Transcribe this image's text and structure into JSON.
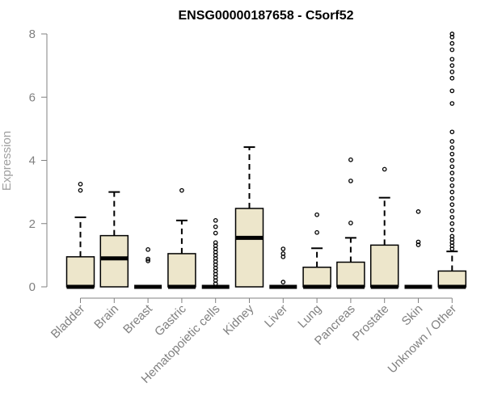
{
  "chart_data": {
    "type": "box",
    "title": "ENSG00000187658 - C5orf52",
    "xlabel": "",
    "ylabel": "Expression",
    "ylim": [
      0,
      8
    ],
    "yticks": [
      0,
      2,
      4,
      6,
      8
    ],
    "grid": false,
    "colors": {
      "box_fill": "#ede6cb",
      "stroke": "#000000",
      "axis": "#808080"
    },
    "categories": [
      "Bladder",
      "Brain",
      "Breast",
      "Gastric",
      "Hematopoietic cells",
      "Kidney",
      "Liver",
      "Lung",
      "Pancreas",
      "Prostate",
      "Skin",
      "Unknown / Other"
    ],
    "boxes": [
      {
        "category": "Bladder",
        "min": 0,
        "q1": 0,
        "median": 0,
        "q3": 0.95,
        "max": 2.2,
        "outliers": [
          3.05,
          3.25
        ]
      },
      {
        "category": "Brain",
        "min": 0,
        "q1": 0,
        "median": 0.9,
        "q3": 1.62,
        "max": 3.0,
        "outliers": []
      },
      {
        "category": "Breast",
        "min": 0,
        "q1": 0,
        "median": 0,
        "q3": 0,
        "max": 0,
        "outliers": [
          0.82,
          0.88,
          1.18
        ]
      },
      {
        "category": "Gastric",
        "min": 0,
        "q1": 0,
        "median": 0,
        "q3": 1.05,
        "max": 2.1,
        "outliers": [
          3.05
        ]
      },
      {
        "category": "Hematopoietic cells",
        "min": 0,
        "q1": 0,
        "median": 0,
        "q3": 0,
        "max": 0,
        "outliers": [
          0.1,
          0.2,
          0.3,
          0.4,
          0.5,
          0.6,
          0.7,
          0.8,
          0.9,
          1.0,
          1.1,
          1.2,
          1.3,
          1.4,
          1.7,
          1.9,
          2.1
        ]
      },
      {
        "category": "Kidney",
        "min": 0,
        "q1": 0,
        "median": 1.55,
        "q3": 2.48,
        "max": 4.42,
        "outliers": []
      },
      {
        "category": "Liver",
        "min": 0,
        "q1": 0,
        "median": 0,
        "q3": 0,
        "max": 0,
        "outliers": [
          0.15,
          0.95,
          1.05,
          1.2
        ]
      },
      {
        "category": "Lung",
        "min": 0,
        "q1": 0,
        "median": 0,
        "q3": 0.62,
        "max": 1.22,
        "outliers": [
          1.72,
          2.28
        ]
      },
      {
        "category": "Pancreas",
        "min": 0,
        "q1": 0,
        "median": 0,
        "q3": 0.78,
        "max": 1.55,
        "outliers": [
          2.02,
          3.35,
          4.02
        ]
      },
      {
        "category": "Prostate",
        "min": 0,
        "q1": 0,
        "median": 0,
        "q3": 1.32,
        "max": 2.82,
        "outliers": [
          3.72
        ]
      },
      {
        "category": "Skin",
        "min": 0,
        "q1": 0,
        "median": 0,
        "q3": 0,
        "max": 0,
        "outliers": [
          1.33,
          1.42,
          2.38
        ]
      },
      {
        "category": "Unknown / Other",
        "min": 0,
        "q1": 0,
        "median": 0,
        "q3": 0.5,
        "max": 1.12,
        "outliers": [
          1.2,
          1.3,
          1.4,
          1.5,
          1.6,
          1.8,
          2.0,
          2.2,
          2.4,
          2.6,
          2.8,
          3.0,
          3.2,
          3.4,
          3.6,
          3.8,
          4.0,
          4.2,
          4.4,
          4.6,
          4.9,
          5.8,
          6.2,
          6.6,
          6.8,
          7.0,
          7.2,
          7.5,
          7.7,
          7.9,
          8.0
        ]
      }
    ]
  }
}
